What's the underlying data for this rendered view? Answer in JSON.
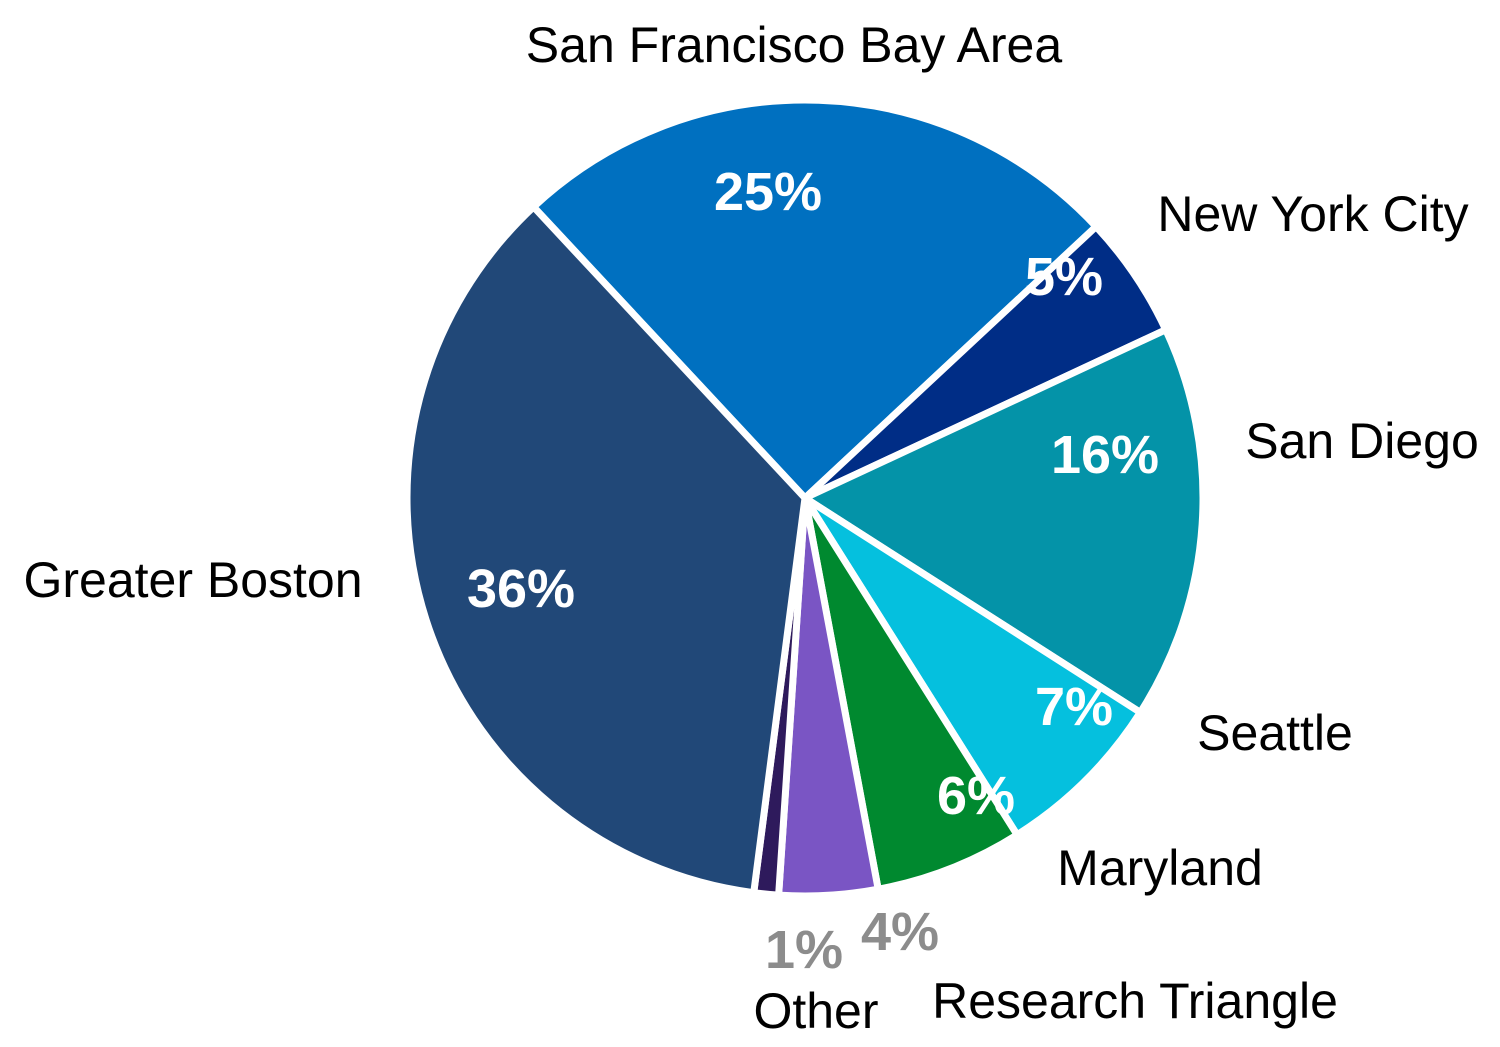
{
  "chart_data": {
    "type": "pie",
    "title": "",
    "categories": [
      "San Francisco Bay Area",
      "New York City",
      "San Diego",
      "Seattle",
      "Maryland",
      "Research Triangle",
      "Other",
      "Greater Boston"
    ],
    "values": [
      25,
      5,
      16,
      7,
      6,
      4,
      1,
      36
    ],
    "value_labels": [
      "25%",
      "5%",
      "16%",
      "7%",
      "6%",
      "4%",
      "1%",
      "36%"
    ],
    "colors": [
      "#0070C0",
      "#002D86",
      "#0493A8",
      "#05C0DE",
      "#00892F",
      "#7A55C4",
      "#2E1A5C",
      "#214878"
    ],
    "label_colors": [
      "#ffffff",
      "#ffffff",
      "#ffffff",
      "#ffffff",
      "#ffffff",
      "#8C8C8C",
      "#8C8C8C",
      "#ffffff"
    ],
    "start_angle_deg": -43,
    "direction": "clockwise",
    "legend": "none"
  }
}
